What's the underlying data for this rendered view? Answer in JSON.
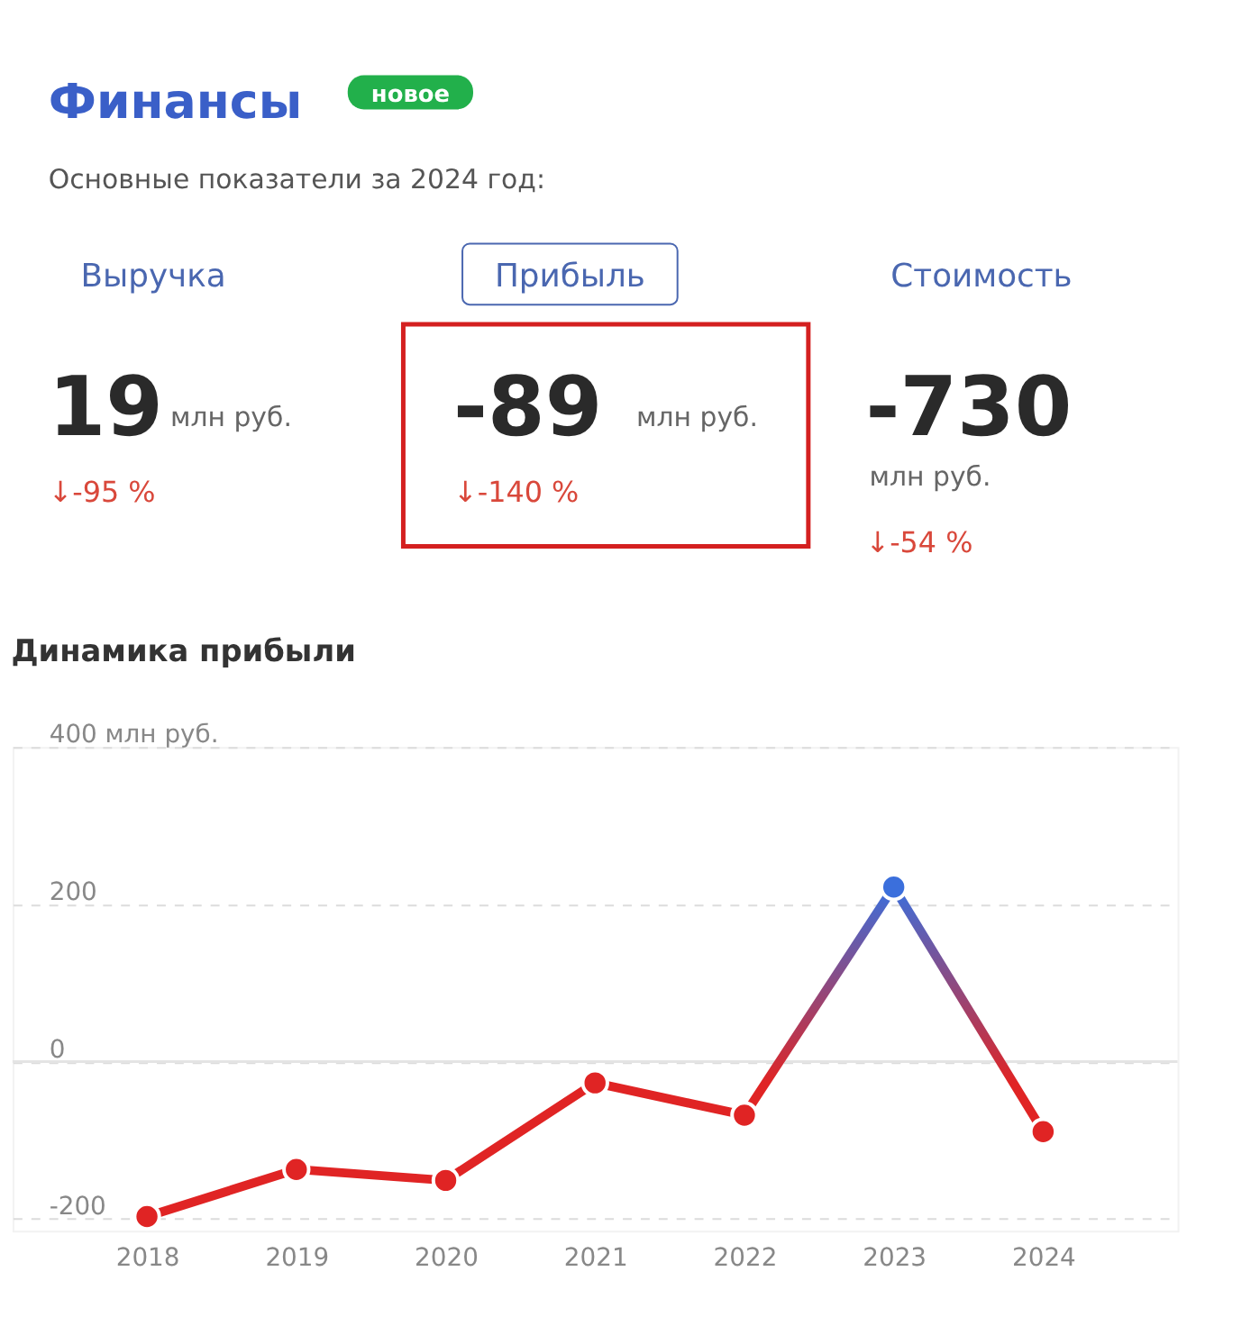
{
  "chart_data": [
    {
      "type": "other",
      "title": "Финансы",
      "subtitle": "Основные показатели за 2024 год:",
      "annotations": [
        "новое",
        "Выручка",
        "Прибыль",
        "Стоимость",
        "19",
        "млн руб.",
        "↓-95 %",
        "-89",
        "млн руб.",
        "↓-140 %",
        "-730",
        "млн руб.",
        "↓-54 %"
      ]
    },
    {
      "type": "line",
      "title": "Динамика прибыли",
      "categories": [
        "2018",
        "2019",
        "2020",
        "2021",
        "2022",
        "2023",
        "2024"
      ],
      "series": [
        {
          "colors": [
            "#e02424",
            "#e02424",
            "#e02424",
            "#e02424",
            "#e02424",
            "#3b6fdc",
            "#e02424"
          ],
          "values": [
            -197,
            -137,
            -151,
            -27,
            -68,
            222,
            -89
          ]
        }
      ],
      "ylim": [
        -215,
        400
      ],
      "yticks": [
        -200,
        0,
        200,
        {
          "value": 400,
          "label": "400 млн руб."
        }
      ],
      "grid": "y",
      "marker": "circle",
      "line_style": "solid",
      "ref_lines": [
        {
          "axis": "y",
          "value": 0,
          "color": "#e4e4e4"
        }
      ]
    }
  ]
}
